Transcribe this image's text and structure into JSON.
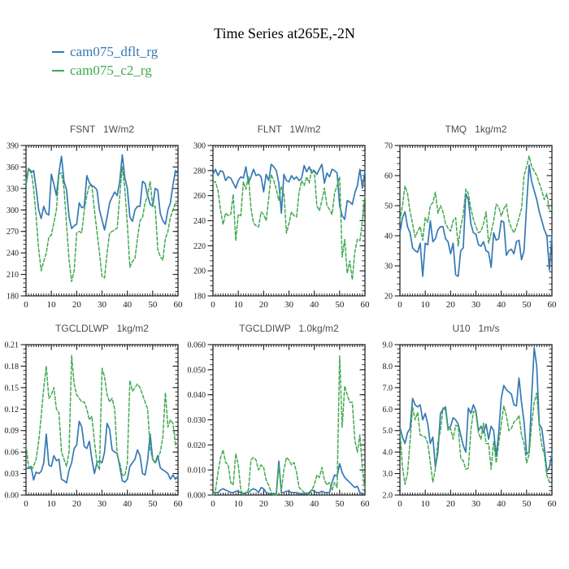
{
  "page": {
    "title": "Time Series at265E,-2N"
  },
  "legend": {
    "items": [
      {
        "label": "cam075_dflt_rg",
        "color": "#3579b5"
      },
      {
        "label": "cam075_c2_rg",
        "color": "#3fa94f"
      }
    ]
  },
  "colors": {
    "blue": "#3579b5",
    "green": "#3fa94f",
    "frame": "#1a1a1a",
    "title_gray": "#4d4d4d"
  },
  "chart_data": [
    {
      "type": "line",
      "title": "FSNT   1W/m2",
      "name": "FSNT",
      "unit": "1W/m2",
      "x_range": [
        0,
        60
      ],
      "y_range": [
        180,
        390
      ],
      "x_ticks": [
        0,
        10,
        20,
        30,
        40,
        50,
        60
      ],
      "y_ticks": [
        180,
        210,
        240,
        270,
        300,
        330,
        360,
        390
      ],
      "y_tick_labels": [
        "180",
        "210",
        "240",
        "270",
        "300",
        "330",
        "360",
        "390"
      ],
      "x_minor_step": 1,
      "y_minor_step": 6,
      "series": [
        {
          "name": "cam075_dflt_rg",
          "color": "#3579b5",
          "style": "solid",
          "values": [
            335,
            358,
            352,
            355,
            330,
            300,
            288,
            305,
            295,
            293,
            350,
            336,
            320,
            352,
            375,
            340,
            328,
            290,
            274,
            278,
            280,
            310,
            303,
            305,
            348,
            338,
            334,
            332,
            328,
            300,
            286,
            272,
            290,
            310,
            318,
            325,
            320,
            340,
            377,
            345,
            330,
            290,
            284,
            300,
            305,
            305,
            340,
            337,
            320,
            308,
            305,
            330,
            328,
            295,
            285,
            280,
            300,
            310,
            335,
            355,
            350
          ]
        },
        {
          "name": "cam075_c2_rg",
          "color": "#3fa94f",
          "style": "dashed",
          "values": [
            340,
            358,
            355,
            330,
            290,
            245,
            215,
            228,
            240,
            262,
            265,
            282,
            300,
            350,
            352,
            330,
            280,
            230,
            200,
            215,
            268,
            270,
            268,
            300,
            320,
            335,
            333,
            300,
            270,
            240,
            207,
            205,
            240,
            268,
            270,
            272,
            275,
            320,
            360,
            330,
            280,
            220,
            228,
            232,
            260,
            285,
            290,
            310,
            320,
            340,
            305,
            305,
            245,
            235,
            230,
            260,
            270,
            290,
            300,
            310,
            308
          ]
        }
      ]
    },
    {
      "type": "line",
      "title": "FLNT   1W/m2",
      "name": "FLNT",
      "unit": "1W/m2",
      "x_range": [
        0,
        60
      ],
      "y_range": [
        180,
        300
      ],
      "x_ticks": [
        0,
        10,
        20,
        30,
        40,
        50,
        60
      ],
      "y_ticks": [
        180,
        200,
        220,
        240,
        260,
        280,
        300
      ],
      "y_tick_labels": [
        "180",
        "200",
        "220",
        "240",
        "260",
        "280",
        "300"
      ],
      "x_minor_step": 1,
      "y_minor_step": 4,
      "series": [
        {
          "name": "cam075_dflt_rg",
          "color": "#3579b5",
          "style": "solid",
          "values": [
            277,
            281,
            276,
            280,
            279,
            272,
            275,
            274,
            270,
            266,
            272,
            275,
            274,
            283,
            270,
            275,
            281,
            276,
            277,
            275,
            263,
            277,
            272,
            285,
            283,
            280,
            270,
            246,
            277,
            272,
            271,
            276,
            273,
            275,
            272,
            274,
            284,
            279,
            283,
            278,
            280,
            277,
            281,
            285,
            270,
            278,
            275,
            281,
            280,
            278,
            252,
            244,
            241,
            256,
            255,
            253,
            262,
            268,
            281,
            266,
            280
          ]
        },
        {
          "name": "cam075_c2_rg",
          "color": "#3fa94f",
          "style": "dashed",
          "values": [
            271,
            271,
            264,
            248,
            237,
            246,
            244,
            245,
            261,
            224,
            245,
            244,
            271,
            265,
            276,
            250,
            238,
            236,
            235,
            247,
            245,
            240,
            258,
            277,
            272,
            265,
            256,
            267,
            262,
            230,
            238,
            247,
            244,
            243,
            263,
            272,
            268,
            275,
            270,
            281,
            280,
            252,
            248,
            256,
            266,
            252,
            249,
            245,
            262,
            268,
            275,
            211,
            225,
            198,
            208,
            193,
            215,
            225,
            224,
            240,
            261
          ]
        }
      ]
    },
    {
      "type": "line",
      "title": "TMQ   1kg/m2",
      "name": "TMQ",
      "unit": "1kg/m2",
      "x_range": [
        0,
        60
      ],
      "y_range": [
        20,
        70
      ],
      "x_ticks": [
        0,
        10,
        20,
        30,
        40,
        50,
        60
      ],
      "y_ticks": [
        20,
        30,
        40,
        50,
        60,
        70
      ],
      "y_tick_labels": [
        "20",
        "30",
        "40",
        "50",
        "60",
        "70"
      ],
      "x_minor_step": 1,
      "y_minor_step": 2,
      "series": [
        {
          "name": "cam075_dflt_rg",
          "color": "#3579b5",
          "style": "solid",
          "values": [
            41,
            46,
            48,
            43,
            41,
            36,
            35,
            34.5,
            37.5,
            26.5,
            37.5,
            37,
            45,
            38,
            39,
            42,
            43,
            43,
            39,
            38,
            34,
            37.5,
            27,
            26.5,
            35,
            36,
            54,
            52,
            44,
            41,
            40.5,
            37,
            36.5,
            38,
            35,
            34.5,
            29.5,
            41,
            38.5,
            39,
            45,
            44.5,
            33.5,
            35,
            35.5,
            34,
            38,
            38.5,
            32,
            35,
            50,
            63.5,
            58,
            55,
            52,
            48,
            45,
            42,
            40,
            28.5,
            40.5
          ]
        },
        {
          "name": "cam075_c2_rg",
          "color": "#3fa94f",
          "style": "dashed",
          "values": [
            45,
            50,
            56.5,
            54,
            48,
            44,
            39.5,
            41.5,
            43,
            38.5,
            46,
            44.5,
            50,
            51,
            54.5,
            47.5,
            50,
            48,
            44,
            42.5,
            41.5,
            45,
            46,
            36.5,
            43,
            47,
            55.5,
            54,
            49,
            45.5,
            43,
            41,
            41.5,
            44,
            48,
            37.5,
            41,
            45,
            50.5,
            49.5,
            46.5,
            49,
            50.5,
            45,
            42.5,
            41,
            43,
            46,
            49,
            60,
            63,
            66.5,
            63,
            61.5,
            60,
            57.5,
            55,
            52,
            54,
            48,
            48.5
          ]
        }
      ]
    },
    {
      "type": "line",
      "title": "TGCLDLWP   1kg/m2",
      "name": "TGCLDLWP",
      "unit": "1kg/m2",
      "x_range": [
        0,
        60
      ],
      "y_range": [
        0,
        0.21
      ],
      "x_ticks": [
        0,
        10,
        20,
        30,
        40,
        50,
        60
      ],
      "y_ticks": [
        0,
        0.03,
        0.06,
        0.09,
        0.12,
        0.15,
        0.18,
        0.21
      ],
      "y_tick_labels": [
        "0.00",
        "0.03",
        "0.06",
        "0.09",
        "0.12",
        "0.15",
        "0.18",
        "0.21"
      ],
      "x_minor_step": 1,
      "y_minor_step": 0.006,
      "series": [
        {
          "name": "cam075_dflt_rg",
          "color": "#3579b5",
          "style": "solid",
          "values": [
            0.038,
            0.037,
            0.04,
            0.021,
            0.032,
            0.03,
            0.033,
            0.045,
            0.085,
            0.042,
            0.04,
            0.055,
            0.048,
            0.05,
            0.022,
            0.02,
            0.017,
            0.035,
            0.045,
            0.065,
            0.07,
            0.103,
            0.095,
            0.068,
            0.065,
            0.075,
            0.05,
            0.03,
            0.045,
            0.048,
            0.045,
            0.06,
            0.1,
            0.092,
            0.063,
            0.06,
            0.058,
            0.04,
            0.02,
            0.018,
            0.022,
            0.04,
            0.045,
            0.05,
            0.063,
            0.055,
            0.03,
            0.028,
            0.048,
            0.085,
            0.05,
            0.045,
            0.055,
            0.038,
            0.035,
            0.033,
            0.03,
            0.022,
            0.028,
            0.022,
            0.026
          ]
        },
        {
          "name": "cam075_c2_rg",
          "color": "#3fa94f",
          "style": "dashed",
          "values": [
            0.07,
            0.04,
            0.035,
            0.04,
            0.05,
            0.075,
            0.11,
            0.15,
            0.18,
            0.135,
            0.14,
            0.15,
            0.12,
            0.115,
            0.06,
            0.05,
            0.04,
            0.06,
            0.195,
            0.155,
            0.14,
            0.135,
            0.13,
            0.13,
            0.12,
            0.105,
            0.11,
            0.075,
            0.045,
            0.035,
            0.177,
            0.165,
            0.14,
            0.13,
            0.135,
            0.12,
            0.055,
            0.045,
            0.028,
            0.027,
            0.045,
            0.16,
            0.145,
            0.15,
            0.155,
            0.15,
            0.14,
            0.13,
            0.12,
            0.065,
            0.05,
            0.045,
            0.05,
            0.06,
            0.08,
            0.143,
            0.095,
            0.105,
            0.1,
            0.07,
            0.072
          ]
        }
      ]
    },
    {
      "type": "line",
      "title": "TGCLDIWP   1.0kg/m2",
      "name": "TGCLDIWP",
      "unit": "1.0kg/m2",
      "x_range": [
        0,
        60
      ],
      "y_range": [
        0,
        0.06
      ],
      "x_ticks": [
        0,
        10,
        20,
        30,
        40,
        50,
        60
      ],
      "y_ticks": [
        0,
        0.01,
        0.02,
        0.03,
        0.04,
        0.05,
        0.06
      ],
      "y_tick_labels": [
        "0.000",
        "0.010",
        "0.020",
        "0.030",
        "0.040",
        "0.050",
        "0.060"
      ],
      "x_minor_step": 1,
      "y_minor_step": 0.002,
      "series": [
        {
          "name": "cam075_dflt_rg",
          "color": "#3579b5",
          "style": "solid",
          "values": [
            0.001,
            0.001,
            0.001,
            0.002,
            0.0025,
            0.002,
            0.0015,
            0.001,
            0.001,
            0.0015,
            0.0015,
            0.001,
            0.0005,
            0.001,
            0.001,
            0.002,
            0.0025,
            0.002,
            0.001,
            0.003,
            0.0025,
            0.001,
            0.0005,
            0.0005,
            0.0005,
            0.0005,
            0.0135,
            0.001,
            0.001,
            0.0015,
            0.0015,
            0.001,
            0.001,
            0.001,
            0.0005,
            0.0005,
            0.0005,
            0.0005,
            0.001,
            0.002,
            0.0015,
            0.001,
            0.001,
            0.0015,
            0.001,
            0.001,
            0.001,
            0.005,
            0.008,
            0.0075,
            0.0125,
            0.009,
            0.007,
            0.006,
            0.005,
            0.004,
            0.003,
            0.0035,
            0.001,
            0.0005,
            0.0005
          ]
        },
        {
          "name": "cam075_c2_rg",
          "color": "#3fa94f",
          "style": "dashed",
          "values": [
            0.0,
            0.002,
            0.009,
            0.015,
            0.018,
            0.013,
            0.012,
            0.005,
            0.004,
            0.0165,
            0.012,
            0.002,
            0.0,
            0.001,
            0.002,
            0.014,
            0.015,
            0.014,
            0.01,
            0.012,
            0.011,
            0.006,
            0.004,
            0.001,
            0.0,
            0.0,
            0.012,
            0.002,
            0.01,
            0.015,
            0.014,
            0.012,
            0.013,
            0.009,
            0.003,
            0.002,
            0.001,
            0.001,
            0.0,
            0.002,
            0.004,
            0.008,
            0.007,
            0.011,
            0.006,
            0.004,
            0.005,
            0.002,
            0.005,
            0.003,
            0.0555,
            0.027,
            0.0435,
            0.04,
            0.037,
            0.037,
            0.022,
            0.017,
            0.024,
            0.01,
            0.002
          ]
        }
      ]
    },
    {
      "type": "line",
      "title": "U10   1m/s",
      "name": "U10",
      "unit": "1m/s",
      "x_range": [
        0,
        60
      ],
      "y_range": [
        2,
        9
      ],
      "x_ticks": [
        0,
        10,
        20,
        30,
        40,
        50,
        60
      ],
      "y_ticks": [
        2,
        3,
        4,
        5,
        6,
        7,
        8,
        9
      ],
      "y_tick_labels": [
        "2.0",
        "3.0",
        "4.0",
        "5.0",
        "6.0",
        "7.0",
        "8.0",
        "9.0"
      ],
      "x_minor_step": 1,
      "y_minor_step": 0.2,
      "series": [
        {
          "name": "cam075_dflt_rg",
          "color": "#3579b5",
          "style": "solid",
          "values": [
            5.15,
            4.7,
            4.4,
            4.9,
            5.1,
            6.5,
            6.2,
            6.1,
            6.2,
            5.5,
            5.8,
            5.3,
            4.4,
            4.7,
            3.3,
            4.0,
            5.8,
            6.0,
            6.1,
            5.1,
            5.2,
            5.6,
            5.5,
            5.3,
            4.8,
            4.3,
            4.0,
            6.05,
            5.8,
            6.2,
            5.9,
            5.0,
            5.2,
            4.9,
            5.3,
            4.6,
            5.2,
            5.0,
            3.8,
            4.9,
            6.5,
            7.1,
            6.9,
            6.8,
            6.7,
            6.2,
            6.15,
            7.45,
            6.3,
            5.4,
            3.9,
            4.0,
            6.6,
            8.85,
            8.0,
            5.3,
            5.1,
            4.2,
            3.1,
            3.3,
            3.9
          ]
        },
        {
          "name": "cam075_c2_rg",
          "color": "#3fa94f",
          "style": "dashed",
          "values": [
            5.0,
            3.3,
            2.5,
            3.0,
            4.5,
            6.1,
            5.5,
            5.85,
            4.8,
            4.75,
            4.7,
            4.4,
            3.5,
            2.6,
            3.2,
            4.5,
            5.0,
            6.05,
            5.95,
            5.0,
            5.1,
            4.6,
            5.25,
            5.2,
            3.7,
            3.6,
            3.2,
            3.25,
            5.0,
            5.9,
            5.8,
            4.9,
            4.6,
            5.35,
            4.4,
            4.4,
            3.2,
            4.5,
            3.5,
            4.4,
            5.3,
            6.15,
            5.7,
            5.0,
            5.1,
            5.4,
            5.5,
            5.7,
            4.8,
            4.4,
            3.5,
            3.9,
            5.3,
            6.3,
            6.75,
            5.2,
            4.3,
            3.9,
            2.9,
            2.6,
            2.5
          ]
        }
      ]
    }
  ]
}
